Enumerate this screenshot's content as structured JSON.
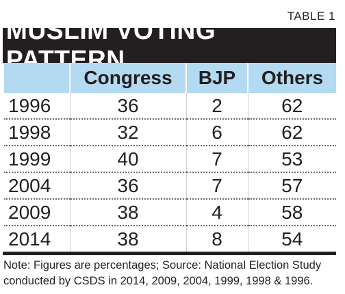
{
  "table_label": "TABLE 1",
  "title": "MUSLIM VOTING PATTERN",
  "note_lines": [
    "Note: Figures are percentages; Source: National Election Study",
    "conducted by CSDS in 2014, 2009, 2004, 1999, 1998 & 1996."
  ],
  "colors": {
    "title_bar": "#231f20",
    "header_bg": "#b3daf1",
    "text": "#231f20"
  },
  "chart_data": {
    "type": "table",
    "title": "MUSLIM VOTING PATTERN",
    "columns": [
      "",
      "Congress",
      "BJP",
      "Others"
    ],
    "rows": [
      [
        "1996",
        "36",
        "2",
        "62"
      ],
      [
        "1998",
        "32",
        "6",
        "62"
      ],
      [
        "1999",
        "40",
        "7",
        "53"
      ],
      [
        "2004",
        "36",
        "7",
        "57"
      ],
      [
        "2009",
        "38",
        "4",
        "58"
      ],
      [
        "2014",
        "38",
        "8",
        "54"
      ]
    ]
  }
}
